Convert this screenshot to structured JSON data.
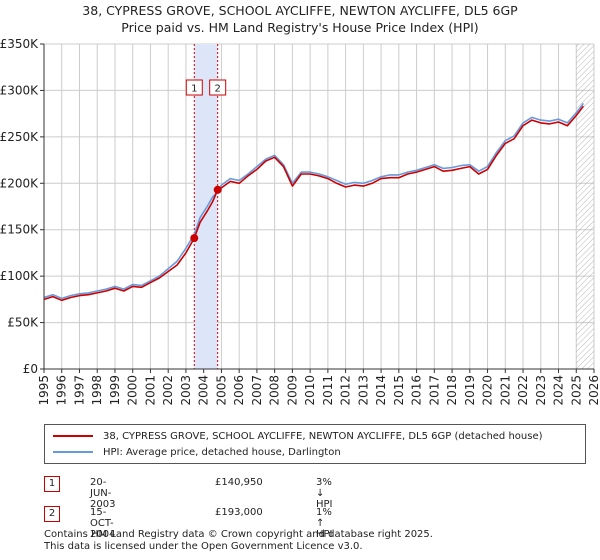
{
  "title": "38, CYPRESS GROVE, SCHOOL AYCLIFFE, NEWTON AYCLIFFE, DL5 6GP",
  "subtitle": "Price paid vs. HM Land Registry's House Price Index (HPI)",
  "colors": {
    "property": "#cc0000",
    "hpi": "#6699dd",
    "highlight": "#dde6f8",
    "grid": "#cccccc"
  },
  "chart_data": {
    "type": "line",
    "title": "38, CYPRESS GROVE, SCHOOL AYCLIFFE, NEWTON AYCLIFFE, DL5 6GP",
    "subtitle": "Price paid vs. HM Land Registry's House Price Index (HPI)",
    "xlim": [
      1995,
      2026
    ],
    "ylim": [
      0,
      350000
    ],
    "x_ticks": [
      "1995",
      "1996",
      "1997",
      "1998",
      "1999",
      "2000",
      "2001",
      "2002",
      "2003",
      "2004",
      "2005",
      "2006",
      "2007",
      "2008",
      "2009",
      "2010",
      "2011",
      "2012",
      "2013",
      "2014",
      "2015",
      "2016",
      "2017",
      "2018",
      "2019",
      "2020",
      "2021",
      "2022",
      "2023",
      "2024",
      "2025",
      "2026"
    ],
    "y_ticks": [
      {
        "value": 0,
        "label": "£0"
      },
      {
        "value": 50000,
        "label": "£50K"
      },
      {
        "value": 100000,
        "label": "£100K"
      },
      {
        "value": 150000,
        "label": "£150K"
      },
      {
        "value": 200000,
        "label": "£200K"
      },
      {
        "value": 250000,
        "label": "£250K"
      },
      {
        "value": 300000,
        "label": "£300K"
      },
      {
        "value": 350000,
        "label": "£350K"
      }
    ],
    "grid": true,
    "highlight_range": [
      2003.47,
      2004.79
    ],
    "future_hatch_from": 2025.0,
    "series": [
      {
        "name": "38, CYPRESS GROVE, SCHOOL AYCLIFFE, NEWTON AYCLIFFE, DL5 6GP (detached house)",
        "color": "#cc0000",
        "x": [
          1995.0,
          1995.5,
          1996.0,
          1996.5,
          1997.0,
          1997.5,
          1998.0,
          1998.5,
          1999.0,
          1999.5,
          2000.0,
          2000.5,
          2001.0,
          2001.5,
          2002.0,
          2002.5,
          2003.0,
          2003.47,
          2003.8,
          2004.2,
          2004.5,
          2004.79,
          2005.0,
          2005.5,
          2006.0,
          2006.5,
          2007.0,
          2007.5,
          2008.0,
          2008.5,
          2009.0,
          2009.5,
          2010.0,
          2010.5,
          2011.0,
          2011.5,
          2012.0,
          2012.5,
          2013.0,
          2013.5,
          2014.0,
          2014.5,
          2015.0,
          2015.5,
          2016.0,
          2016.5,
          2017.0,
          2017.5,
          2018.0,
          2018.5,
          2019.0,
          2019.5,
          2020.0,
          2020.5,
          2021.0,
          2021.5,
          2022.0,
          2022.5,
          2023.0,
          2023.5,
          2024.0,
          2024.5,
          2025.0,
          2025.4
        ],
        "values": [
          75000,
          78000,
          74000,
          77000,
          79000,
          80000,
          82000,
          84000,
          87000,
          84000,
          89000,
          88000,
          93000,
          98000,
          105000,
          112000,
          125000,
          140950,
          158000,
          170000,
          180000,
          193000,
          195000,
          202000,
          200000,
          208000,
          215000,
          224000,
          228000,
          218000,
          197000,
          210000,
          210000,
          208000,
          205000,
          200000,
          196000,
          198000,
          197000,
          200000,
          205000,
          206000,
          206000,
          210000,
          212000,
          215000,
          218000,
          213000,
          214000,
          216000,
          218000,
          210000,
          215000,
          230000,
          243000,
          248000,
          262000,
          268000,
          265000,
          264000,
          266000,
          262000,
          273000,
          283000
        ]
      },
      {
        "name": "HPI: Average price, detached house, Darlington",
        "color": "#6699dd",
        "x": [
          1995.0,
          1995.5,
          1996.0,
          1996.5,
          1997.0,
          1997.5,
          1998.0,
          1998.5,
          1999.0,
          1999.5,
          2000.0,
          2000.5,
          2001.0,
          2001.5,
          2002.0,
          2002.5,
          2003.0,
          2003.47,
          2003.8,
          2004.2,
          2004.5,
          2004.79,
          2005.0,
          2005.5,
          2006.0,
          2006.5,
          2007.0,
          2007.5,
          2008.0,
          2008.5,
          2009.0,
          2009.5,
          2010.0,
          2010.5,
          2011.0,
          2011.5,
          2012.0,
          2012.5,
          2013.0,
          2013.5,
          2014.0,
          2014.5,
          2015.0,
          2015.5,
          2016.0,
          2016.5,
          2017.0,
          2017.5,
          2018.0,
          2018.5,
          2019.0,
          2019.5,
          2020.0,
          2020.5,
          2021.0,
          2021.5,
          2022.0,
          2022.5,
          2023.0,
          2023.5,
          2024.0,
          2024.5,
          2025.0,
          2025.4
        ],
        "values": [
          77000,
          80000,
          76000,
          79000,
          81000,
          82000,
          84000,
          86000,
          89000,
          86000,
          91000,
          90000,
          95000,
          100000,
          108000,
          116000,
          130000,
          145000,
          163000,
          175000,
          185000,
          191000,
          198000,
          205000,
          203000,
          210000,
          218000,
          226000,
          230000,
          220000,
          200000,
          212000,
          212000,
          210000,
          207000,
          203000,
          199000,
          201000,
          200000,
          203000,
          207000,
          209000,
          209000,
          212000,
          214000,
          217000,
          220000,
          216000,
          217000,
          219000,
          220000,
          213000,
          218000,
          233000,
          246000,
          251000,
          265000,
          271000,
          268000,
          267000,
          269000,
          265000,
          276000,
          286000
        ]
      }
    ],
    "sales": [
      {
        "label": "1",
        "x": 2003.47,
        "value": 140950
      },
      {
        "label": "2",
        "x": 2004.79,
        "value": 193000
      }
    ]
  },
  "legend": {
    "property": "38, CYPRESS GROVE, SCHOOL AYCLIFFE, NEWTON AYCLIFFE, DL5 6GP (detached house)",
    "hpi": "HPI: Average price, detached house, Darlington"
  },
  "annotations": [
    {
      "num": "1",
      "date": "20-JUN-2003",
      "price": "£140,950",
      "hpi": "3% ↓ HPI"
    },
    {
      "num": "2",
      "date": "15-OCT-2004",
      "price": "£193,000",
      "hpi": "1% ↑ HPI"
    }
  ],
  "footer": {
    "line1": "Contains HM Land Registry data © Crown copyright and database right 2025.",
    "line2": "This data is licensed under the Open Government Licence v3.0."
  }
}
